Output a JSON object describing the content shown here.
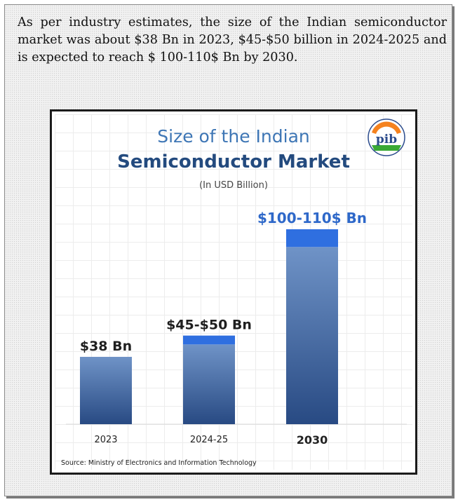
{
  "intro_text": "As per industry estimates, the size of the Indian semiconductor market was about $38 Bn in 2023, $45-$50 billion in 2024-2025 and is expected to reach $ 100-110$ Bn by 2030.",
  "logo": {
    "icon": "pib-logo",
    "colors": {
      "saffron": "#f5821f",
      "green": "#3aa935",
      "blue": "#2b4b8c"
    }
  },
  "chart_data": {
    "type": "bar",
    "title_line1": "Size of the Indian",
    "title_line2": "Semiconductor Market",
    "subtitle": "(In USD Billion)",
    "categories": [
      "2023",
      "2024-25",
      "2030"
    ],
    "low": [
      38,
      45,
      100
    ],
    "high": [
      38,
      50,
      110
    ],
    "labels": [
      "$38 Bn",
      "$45-$50 Bn",
      "$100-110$ Bn"
    ],
    "ylim": [
      0,
      110
    ],
    "grid": true,
    "source": "Source: Ministry of Electronics and Information Technology",
    "colors": {
      "bar_top": "#6f93c7",
      "bar_bottom": "#284a83",
      "range_band": "#2f6fe0",
      "label": "#1f1f1f",
      "highlight_label": "#2e68c9"
    }
  }
}
